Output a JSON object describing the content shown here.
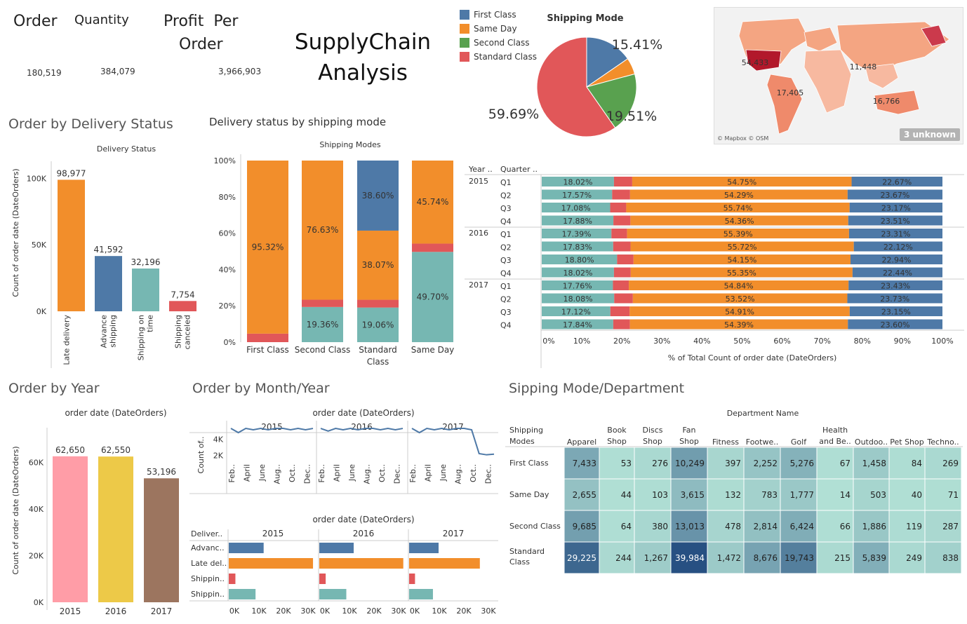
{
  "kpis": {
    "order": {
      "label": "Order",
      "value": "180,519"
    },
    "quantity": {
      "label": "Quantity",
      "value": "384,079"
    },
    "profit": {
      "label_1": "Profit  Per",
      "label_2": "Order",
      "value": "3,966,903"
    }
  },
  "page_title": {
    "line1": "SupplyChain",
    "line2": "Analysis"
  },
  "sections": {
    "delivery_status": "Order by Delivery Status",
    "status_by_mode": "Delivery status by shipping mode",
    "year": "Order by Year",
    "month_year": "Order by Month/Year",
    "mode_department": "Sipping Mode/Department"
  },
  "colors": {
    "blue": "#4e79a7",
    "orange": "#f28e2b",
    "green": "#59a14f",
    "red": "#e15759",
    "teal": "#76b7b2",
    "pink": "#ff9da7",
    "yellow": "#edc948",
    "brown": "#9c755f"
  },
  "map": {
    "labels": [
      "54,433",
      "11,448",
      "17,405",
      "16,766"
    ],
    "attribution": "© Mapbox © OSM",
    "unknown_badge": "3 unknown"
  },
  "chart_data": [
    {
      "id": "shipping_mode_pie",
      "type": "pie",
      "title": "Shipping Mode",
      "legend": "top-left",
      "categories": [
        "First Class",
        "Same Day",
        "Second Class",
        "Standard Class"
      ],
      "values": [
        15.41,
        5.39,
        19.51,
        59.69
      ],
      "value_labels": [
        "15.41%",
        "",
        "19.51%",
        "59.69%"
      ]
    },
    {
      "id": "delivery_status_bar",
      "type": "bar",
      "title": "Delivery Status",
      "ylabel": "Count of order date (DateOrders)",
      "categories": [
        "Late delivery",
        "Advance shipping",
        "Shipping on time",
        "Shipping canceled"
      ],
      "category_lines": [
        [
          "Late delivery"
        ],
        [
          "Advance",
          "shipping"
        ],
        [
          "Shipping on",
          "time"
        ],
        [
          "Shipping",
          "canceled"
        ]
      ],
      "values": [
        98977,
        41592,
        32196,
        7754
      ],
      "value_labels": [
        "98,977",
        "41,592",
        "32,196",
        "7,754"
      ],
      "ylim": [
        0,
        105000
      ],
      "yticks": [
        0,
        50000,
        100000
      ],
      "ytick_labels": [
        "0K",
        "50K",
        "100K"
      ],
      "colors": [
        "#f28e2b",
        "#4e79a7",
        "#76b7b2",
        "#e15759"
      ]
    },
    {
      "id": "status_by_mode_stacked",
      "type": "bar",
      "title": "Shipping Modes",
      "categories": [
        "First Class",
        "Second Class",
        "Standard Class",
        "Same Day"
      ],
      "category_lines": [
        [
          "First Class"
        ],
        [
          "Second Class"
        ],
        [
          "Standard",
          "Class"
        ],
        [
          "Same Day"
        ]
      ],
      "yticks": [
        0,
        20,
        40,
        60,
        80,
        100
      ],
      "ytick_labels": [
        "0%",
        "20%",
        "40%",
        "60%",
        "80%",
        "100%"
      ],
      "series": [
        {
          "values": [
            0,
            19.36,
            19.06,
            49.7
          ],
          "color": "#76b7b2",
          "labels": [
            "",
            "19.36%",
            "19.06%",
            "49.70%"
          ]
        },
        {
          "values": [
            4.68,
            4.01,
            4.28,
            4.56
          ],
          "color": "#e15759",
          "labels": [
            "",
            "",
            "",
            ""
          ]
        },
        {
          "values": [
            95.32,
            76.63,
            38.07,
            45.74
          ],
          "color": "#f28e2b",
          "labels": [
            "95.32%",
            "76.63%",
            "38.07%",
            "45.74%"
          ]
        },
        {
          "values": [
            0,
            0,
            38.6,
            0
          ],
          "color": "#4e79a7",
          "labels": [
            "",
            "",
            "38.60%",
            ""
          ]
        }
      ]
    },
    {
      "id": "quarter_status_stacked",
      "type": "bar",
      "xlabel": "% of Total Count of order date (DateOrders)",
      "header_year": "Year ..",
      "header_quarter": "Quarter ..",
      "xticks": [
        0,
        10,
        20,
        30,
        40,
        50,
        60,
        70,
        80,
        90,
        100
      ],
      "xtick_labels": [
        "0%",
        "10%",
        "20%",
        "30%",
        "40%",
        "50%",
        "60%",
        "70%",
        "80%",
        "90%",
        "100%"
      ],
      "years": [
        "2015",
        "2016",
        "2017"
      ],
      "quarters": [
        "Q1",
        "Q2",
        "Q3",
        "Q4"
      ],
      "rows": [
        [
          18.02,
          4.56,
          54.75,
          22.67
        ],
        [
          17.57,
          4.47,
          54.29,
          23.67
        ],
        [
          17.08,
          4.01,
          55.74,
          23.17
        ],
        [
          17.88,
          4.25,
          54.36,
          23.51
        ],
        [
          17.39,
          3.91,
          55.39,
          23.31
        ],
        [
          17.83,
          4.33,
          55.72,
          22.12
        ],
        [
          18.8,
          4.11,
          54.15,
          22.94
        ],
        [
          18.02,
          4.19,
          55.35,
          22.44
        ],
        [
          17.76,
          3.97,
          54.84,
          23.43
        ],
        [
          18.08,
          4.66,
          53.52,
          23.73
        ],
        [
          17.12,
          4.82,
          54.91,
          23.15
        ],
        [
          17.84,
          4.17,
          54.39,
          23.6
        ]
      ],
      "row_labels": [
        [
          "18.02%",
          "",
          "54.75%",
          "22.67%"
        ],
        [
          "17.57%",
          "",
          "54.29%",
          "23.67%"
        ],
        [
          "17.08%",
          "",
          "55.74%",
          "23.17%"
        ],
        [
          "17.88%",
          "",
          "54.36%",
          "23.51%"
        ],
        [
          "17.39%",
          "",
          "55.39%",
          "23.31%"
        ],
        [
          "17.83%",
          "",
          "55.72%",
          "22.12%"
        ],
        [
          "18.80%",
          "",
          "54.15%",
          "22.94%"
        ],
        [
          "18.02%",
          "",
          "55.35%",
          "22.44%"
        ],
        [
          "17.76%",
          "",
          "54.84%",
          "23.43%"
        ],
        [
          "18.08%",
          "",
          "53.52%",
          "23.73%"
        ],
        [
          "17.12%",
          "",
          "54.91%",
          "23.15%"
        ],
        [
          "17.84%",
          "",
          "54.39%",
          "23.60%"
        ]
      ],
      "series_colors": [
        "#76b7b2",
        "#e15759",
        "#f28e2b",
        "#4e79a7"
      ]
    },
    {
      "id": "orders_by_year",
      "type": "bar",
      "title": "order date (DateOrders)",
      "ylabel": "Count of order date (DateOrders)",
      "categories": [
        "2015",
        "2016",
        "2017"
      ],
      "values": [
        62650,
        62550,
        53196
      ],
      "value_labels": [
        "62,650",
        "62,550",
        "53,196"
      ],
      "ylim": [
        0,
        65000
      ],
      "yticks": [
        0,
        20000,
        40000,
        60000
      ],
      "ytick_labels": [
        "0K",
        "20K",
        "40K",
        "60K"
      ],
      "colors": [
        "#ff9da7",
        "#edc948",
        "#9c755f"
      ]
    },
    {
      "id": "orders_by_month",
      "type": "line",
      "title": "order date (DateOrders)",
      "ylabel": "Count of..",
      "years": [
        "2015",
        "2016",
        "2017"
      ],
      "month_labels": [
        "Feb..",
        "April",
        "June",
        "Aug..",
        "Oct..",
        "Dec.."
      ],
      "ylim": [
        1500,
        5500
      ],
      "yticks": [
        2000,
        4000
      ],
      "ytick_labels": [
        "2K",
        "4K"
      ],
      "series": [
        {
          "name": "2015",
          "values": [
            5322,
            4800,
            5322,
            5150,
            5322,
            5150,
            5322,
            5322,
            5150,
            5322,
            5150,
            5322
          ]
        },
        {
          "name": "2016",
          "values": [
            5322,
            4990,
            5322,
            5150,
            5322,
            5150,
            5322,
            5322,
            5150,
            5322,
            5150,
            5322
          ]
        },
        {
          "name": "2017",
          "values": [
            5322,
            4800,
            5322,
            5150,
            5322,
            5150,
            5322,
            5322,
            5150,
            2200,
            2050,
            2130
          ]
        }
      ],
      "color": "#4e79a7"
    },
    {
      "id": "delivery_by_year_bars",
      "type": "bar",
      "title": "order date (DateOrders)",
      "row_header": "Deliver..",
      "years": [
        "2015",
        "2016",
        "2017"
      ],
      "categories": [
        "Advanc..",
        "Late del..",
        "Shippin..",
        "Shippin.."
      ],
      "xticks": [
        0,
        10000,
        20000,
        30000
      ],
      "xtick_labels": [
        "0K",
        "10K",
        "20K",
        "30K"
      ],
      "xlim": [
        0,
        36000
      ],
      "values": [
        [
          14200,
          34300,
          2700,
          10900
        ],
        [
          14000,
          34200,
          2600,
          11000
        ],
        [
          12000,
          28800,
          2400,
          9700
        ]
      ],
      "colors": [
        "#4e79a7",
        "#f28e2b",
        "#e15759",
        "#76b7b2"
      ]
    },
    {
      "id": "mode_department_heatmap",
      "type": "heatmap",
      "title": "Department Name",
      "row_header": [
        "Shipping",
        "Modes"
      ],
      "columns": [
        [
          "Apparel"
        ],
        [
          "Book",
          "Shop"
        ],
        [
          "Discs",
          "Shop"
        ],
        [
          "Fan",
          "Shop"
        ],
        [
          "Fitness"
        ],
        [
          "Footwe.."
        ],
        [
          "Golf"
        ],
        [
          "Health",
          "and Be.."
        ],
        [
          "Outdoo.."
        ],
        [
          "Pet Shop"
        ],
        [
          "Techno.."
        ]
      ],
      "rows": [
        [
          "First Class"
        ],
        [
          "Same Day"
        ],
        [
          "Second Class"
        ],
        [
          "Standard",
          "Class"
        ]
      ],
      "values": [
        [
          7433,
          53,
          276,
          10249,
          397,
          2252,
          5276,
          67,
          1458,
          84,
          269
        ],
        [
          2655,
          44,
          103,
          3615,
          132,
          783,
          1777,
          14,
          503,
          40,
          71
        ],
        [
          9685,
          64,
          380,
          13013,
          478,
          2814,
          6424,
          66,
          1886,
          119,
          287
        ],
        [
          29225,
          244,
          1267,
          39984,
          1472,
          8676,
          19743,
          215,
          5839,
          249,
          838
        ]
      ],
      "value_labels": [
        [
          "7,433",
          "53",
          "276",
          "10,249",
          "397",
          "2,252",
          "5,276",
          "67",
          "1,458",
          "84",
          "269"
        ],
        [
          "2,655",
          "44",
          "103",
          "3,615",
          "132",
          "783",
          "1,777",
          "14",
          "503",
          "40",
          "71"
        ],
        [
          "9,685",
          "64",
          "380",
          "13,013",
          "478",
          "2,814",
          "6,424",
          "66",
          "1,886",
          "119",
          "287"
        ],
        [
          "29,225",
          "244",
          "1,267",
          "39,984",
          "1,472",
          "8,676",
          "19,743",
          "215",
          "5,839",
          "249",
          "838"
        ]
      ]
    }
  ]
}
